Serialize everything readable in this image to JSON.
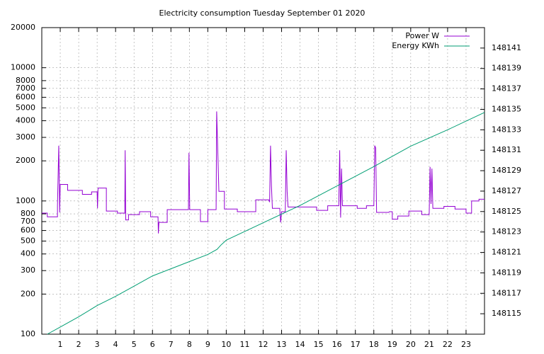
{
  "chart_data": {
    "type": "line",
    "title": "Electricity consumption Tuesday September 01 2020",
    "xlim": [
      0,
      24
    ],
    "xticks": [
      1,
      2,
      3,
      4,
      5,
      6,
      7,
      8,
      9,
      10,
      11,
      12,
      13,
      14,
      15,
      16,
      17,
      18,
      19,
      20,
      21,
      22,
      23
    ],
    "ylim": [
      100,
      20000
    ],
    "ylog": true,
    "yticks": [
      100,
      200,
      300,
      400,
      500,
      600,
      700,
      800,
      1000,
      2000,
      3000,
      4000,
      5000,
      6000,
      7000,
      8000,
      10000,
      20000
    ],
    "y2lim": [
      148113,
      148143
    ],
    "y2ticks": [
      148115,
      148117,
      148119,
      148121,
      148123,
      148125,
      148127,
      148129,
      148131,
      148133,
      148135,
      148137,
      148139,
      148141
    ],
    "grid": true,
    "legend": "top-right",
    "series": [
      {
        "name": "Power W",
        "color": "#9400d3",
        "x": [
          0,
          0.3,
          0.3,
          0.85,
          0.85,
          0.92,
          0.97,
          1.0,
          1.4,
          1.4,
          2.2,
          2.2,
          2.7,
          2.7,
          3.0,
          3.02,
          3.05,
          3.5,
          3.5,
          4.1,
          4.1,
          4.5,
          4.52,
          4.55,
          4.7,
          4.7,
          5.3,
          5.3,
          5.9,
          5.9,
          6.3,
          6.32,
          6.35,
          6.8,
          6.8,
          7.95,
          7.98,
          8.02,
          8.6,
          8.6,
          9.0,
          9.0,
          9.45,
          9.48,
          9.52,
          9.6,
          9.9,
          9.9,
          10.6,
          10.6,
          11.6,
          11.6,
          12.3,
          12.35,
          12.4,
          12.45,
          12.5,
          12.9,
          12.95,
          13.0,
          13.2,
          13.25,
          13.3,
          13.35,
          14.9,
          14.9,
          15.5,
          15.5,
          16.1,
          16.15,
          16.2,
          16.25,
          16.3,
          17.1,
          17.1,
          17.6,
          17.6,
          18.0,
          18.05,
          18.1,
          18.15,
          18.8,
          18.85,
          19.0,
          19.0,
          19.3,
          19.3,
          19.9,
          19.9,
          20.6,
          20.6,
          21.0,
          21.05,
          21.1,
          21.15,
          21.2,
          21.8,
          21.8,
          22.4,
          22.4,
          23.0,
          23.0,
          23.3,
          23.3,
          23.7,
          23.7,
          24
        ],
        "values": [
          810,
          810,
          760,
          760,
          920,
          2600,
          820,
          1330,
          1330,
          1200,
          1200,
          1120,
          1120,
          1170,
          1170,
          880,
          1250,
          1250,
          840,
          840,
          810,
          810,
          2400,
          720,
          720,
          790,
          790,
          830,
          830,
          760,
          760,
          570,
          690,
          690,
          860,
          860,
          2300,
          860,
          860,
          700,
          700,
          860,
          860,
          4700,
          3000,
          1180,
          1180,
          870,
          870,
          830,
          830,
          1020,
          1020,
          980,
          2600,
          1300,
          880,
          880,
          690,
          830,
          830,
          2400,
          1180,
          900,
          900,
          850,
          850,
          920,
          920,
          2400,
          750,
          1750,
          920,
          920,
          880,
          880,
          920,
          920,
          2600,
          2500,
          820,
          820,
          830,
          830,
          730,
          730,
          770,
          770,
          840,
          840,
          790,
          790,
          1800,
          950,
          1750,
          880,
          880,
          910,
          910,
          870,
          870,
          810,
          810,
          1000,
          1000,
          1030,
          1030
        ]
      },
      {
        "name": "Energy KWh",
        "color": "#009e73",
        "axis": "y2",
        "x": [
          0.3,
          1,
          2,
          3,
          4,
          5,
          6,
          7,
          8,
          9,
          9.5,
          9.7,
          10,
          12,
          14,
          16,
          18,
          19,
          20,
          22,
          24
        ],
        "values": [
          148113.0,
          148113.7,
          148114.7,
          148115.8,
          148116.7,
          148117.7,
          148118.7,
          148119.4,
          148120.1,
          148120.8,
          148121.3,
          148121.7,
          148122.2,
          148123.9,
          148125.6,
          148127.5,
          148129.4,
          148130.4,
          148131.4,
          148133.0,
          148134.7
        ]
      }
    ]
  }
}
